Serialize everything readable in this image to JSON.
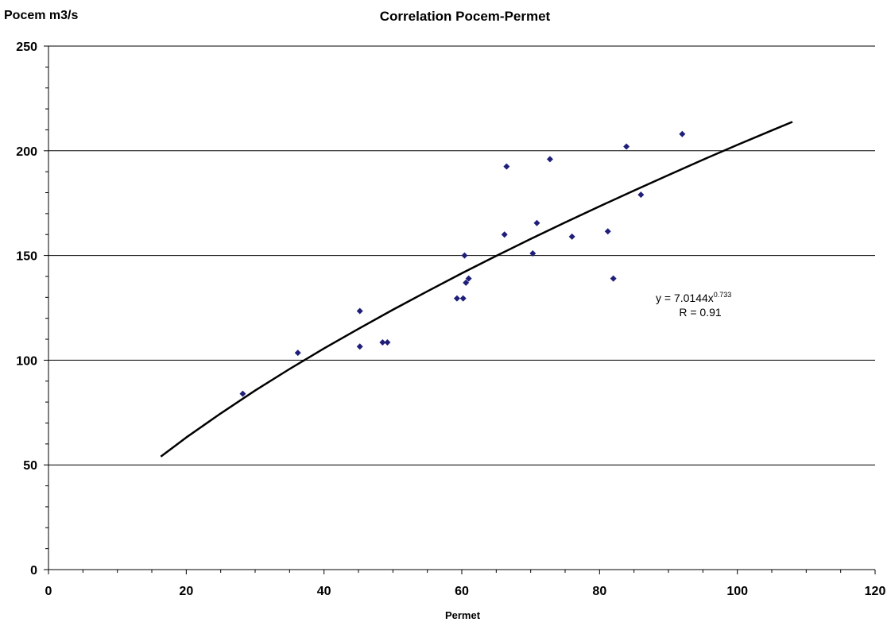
{
  "chart_data": {
    "type": "scatter",
    "title": "Correlation Pocem-Permet",
    "xlabel": "Permet",
    "ylabel": "Pocem m3/s",
    "xlim": [
      0,
      120
    ],
    "ylim": [
      0,
      250
    ],
    "x_ticks": [
      0,
      20,
      40,
      60,
      80,
      100,
      120
    ],
    "y_ticks": [
      0,
      50,
      100,
      150,
      200,
      250
    ],
    "x_tick_labels": [
      "0",
      "20",
      "40",
      "60",
      "80",
      "100",
      "120"
    ],
    "y_tick_labels": [
      "0",
      "50",
      "100",
      "150",
      "200",
      "250"
    ],
    "grid": "horizontal",
    "legend": "none",
    "marker_color": "#1f1f7a",
    "series": [
      {
        "type": "scatter",
        "x": [
          28.2,
          36.2,
          45.2,
          45.2,
          48.5,
          49.2,
          59.3,
          60.2,
          60.4,
          60.6,
          61.0,
          66.2,
          66.5,
          70.3,
          70.9,
          72.8,
          76.0,
          81.2,
          82.0,
          83.9,
          86.0,
          92.0
        ],
        "y": [
          84,
          103.5,
          106.5,
          123.5,
          108.5,
          108.5,
          129.5,
          129.5,
          150,
          137,
          139,
          160,
          192.5,
          151,
          165.5,
          196,
          159,
          161.5,
          139,
          202,
          179,
          208
        ]
      },
      {
        "type": "line",
        "x": [
          16.3,
          20,
          25,
          30,
          35,
          40,
          45,
          50,
          55,
          60,
          65,
          70,
          75,
          80,
          85,
          90,
          95,
          100,
          105,
          108
        ],
        "y": [
          54.0,
          63.1,
          74.6,
          85.5,
          95.8,
          105.6,
          115.0,
          124.1,
          132.9,
          141.5,
          149.8,
          157.9,
          165.8,
          173.5,
          181.0,
          188.4,
          195.7,
          202.8,
          209.7,
          213.8
        ]
      }
    ],
    "annotations": {
      "equation_prefix": "y = 7.0144x",
      "equation_exponent": "0.733",
      "r_value": "R = 0.91"
    }
  }
}
